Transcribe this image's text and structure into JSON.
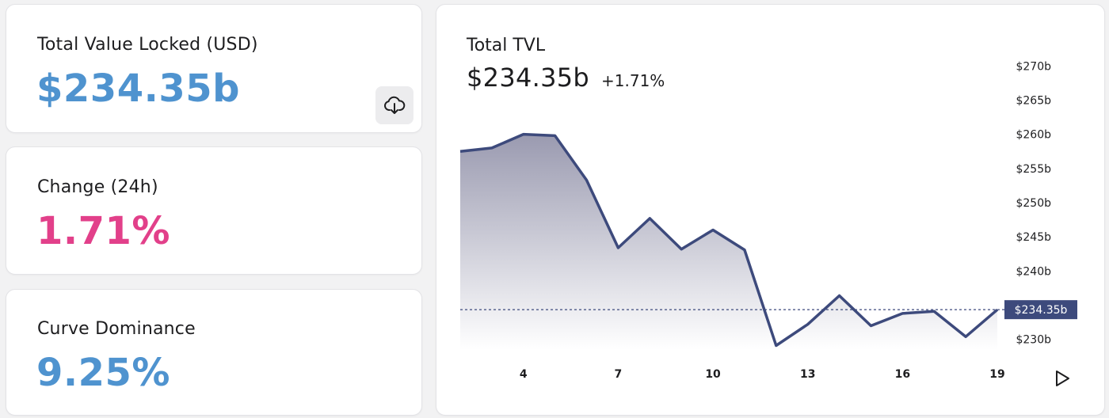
{
  "stats": {
    "tvl": {
      "label": "Total Value Locked (USD)",
      "value": "$234.35b",
      "color": "#4f93cf"
    },
    "change": {
      "label": "Change (24h)",
      "value": "1.71%",
      "color": "#e2408a"
    },
    "dominance": {
      "label": "Curve Dominance",
      "value": "9.25%",
      "color": "#4f93cf"
    }
  },
  "icons": {
    "download": "cloud-download-icon",
    "play": "play-icon"
  },
  "chart": {
    "title": "Total TVL",
    "value": "$234.35b",
    "delta": "+1.71%",
    "current_marker": "$234.35b",
    "line_color": "#3d4a7c"
  },
  "chart_data": {
    "type": "area",
    "x": [
      2,
      3,
      4,
      5,
      6,
      7,
      8,
      9,
      10,
      11,
      12,
      13,
      14,
      15,
      16,
      17,
      18,
      19
    ],
    "y": [
      257.5,
      258.0,
      260.0,
      259.8,
      253.3,
      243.4,
      247.7,
      243.2,
      246.0,
      243.1,
      229.1,
      232.2,
      236.4,
      232.0,
      233.8,
      234.1,
      230.4,
      234.35
    ],
    "x_ticks": [
      4,
      7,
      10,
      13,
      16,
      19
    ],
    "y_ticks": [
      230,
      240,
      245,
      250,
      255,
      260,
      265,
      270
    ],
    "y_tick_labels": [
      "$230b",
      "$240b",
      "$245b",
      "$250b",
      "$255b",
      "$260b",
      "$265b",
      "$270b"
    ],
    "current_value": 234.35,
    "ylim": [
      228,
      272
    ]
  }
}
